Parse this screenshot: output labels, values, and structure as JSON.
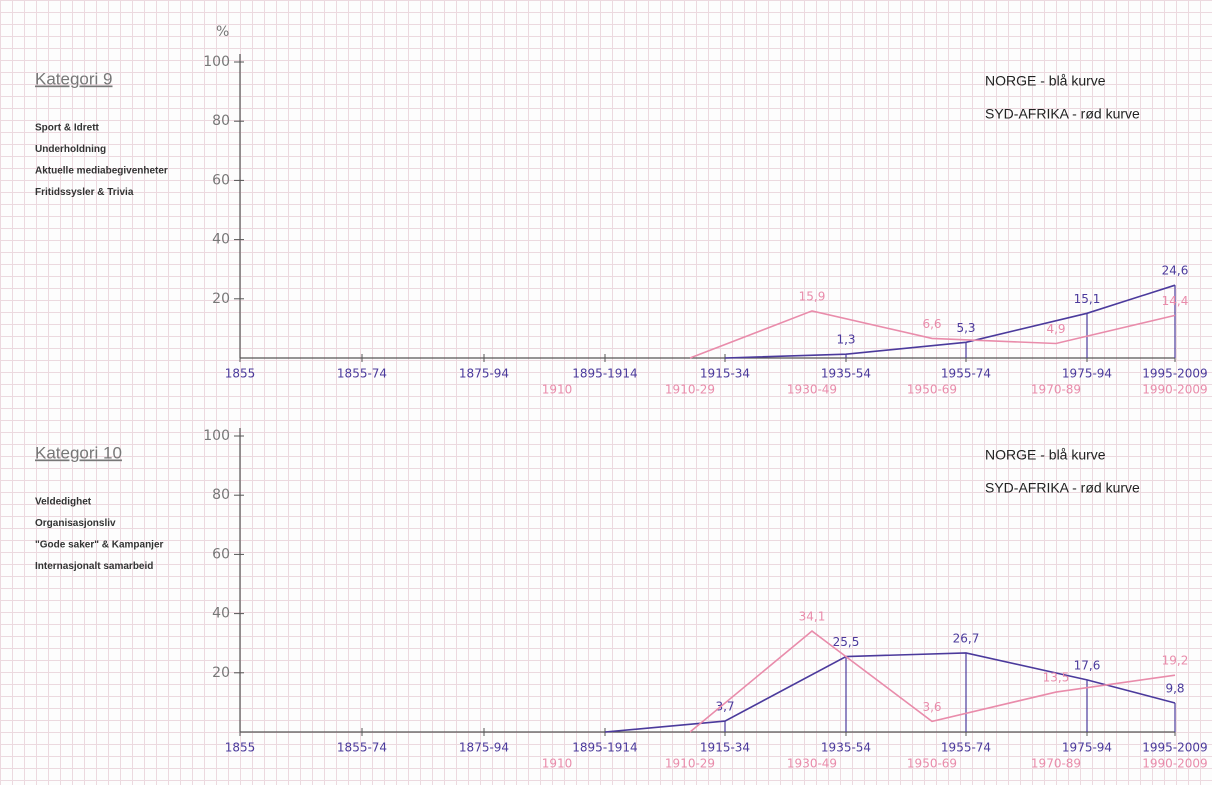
{
  "chart_data": [
    {
      "type": "line",
      "title": "Kategori 9",
      "topics": [
        "Sport & Idrett",
        "Underholdning",
        "Aktuelle mediabegivenheter",
        "Fritidssysler & Trivia"
      ],
      "y_label": "%",
      "ylim": [
        0,
        100
      ],
      "yticks": [
        20,
        40,
        60,
        80,
        100
      ],
      "series": [
        {
          "name": "NORGE - blå kurve",
          "color": "#4b3a9c",
          "categories": [
            "1855",
            "1855-74",
            "1875-94",
            "1895-1914",
            "1915-34",
            "1935-54",
            "1955-74",
            "1975-94",
            "1995-2009"
          ],
          "values": [
            null,
            null,
            null,
            null,
            0,
            1.3,
            5.3,
            15.1,
            24.6
          ],
          "value_labels": [
            null,
            null,
            null,
            null,
            null,
            "1,3",
            "5,3",
            "15,1",
            "24,6"
          ]
        },
        {
          "name": "SYD-AFRIKA - rød kurve",
          "color": "#e98cab",
          "categories": [
            "1910",
            "1910-29",
            "1930-49",
            "1950-69",
            "1970-89",
            "1990-2009"
          ],
          "values": [
            null,
            0,
            15.9,
            6.6,
            4.9,
            14.4
          ],
          "value_labels": [
            null,
            null,
            "15,9",
            "6,6",
            "4,9",
            "14,4"
          ]
        }
      ]
    },
    {
      "type": "line",
      "title": "Kategori 10",
      "topics": [
        "Veldedighet",
        "Organisasjonsliv",
        "\"Gode saker\" & Kampanjer",
        "Internasjonalt samarbeid"
      ],
      "ylim": [
        0,
        100
      ],
      "yticks": [
        20,
        40,
        60,
        80,
        100
      ],
      "series": [
        {
          "name": "NORGE - blå kurve",
          "color": "#4b3a9c",
          "categories": [
            "1855",
            "1855-74",
            "1875-94",
            "1895-1914",
            "1915-34",
            "1935-54",
            "1955-74",
            "1975-94",
            "1995-2009"
          ],
          "values": [
            null,
            null,
            null,
            0,
            3.7,
            25.5,
            26.7,
            17.6,
            9.8
          ],
          "value_labels": [
            null,
            null,
            null,
            null,
            "3,7",
            "25,5",
            "26,7",
            "17,6",
            "9,8"
          ]
        },
        {
          "name": "SYD-AFRIKA - rød kurve",
          "color": "#e98cab",
          "categories": [
            "1910",
            "1910-29",
            "1930-49",
            "1950-69",
            "1970-89",
            "1990-2009"
          ],
          "values": [
            null,
            0,
            34.1,
            3.6,
            13.5,
            19.2
          ],
          "value_labels": [
            null,
            null,
            "34,1",
            "3,6",
            "13,5",
            "19,2"
          ]
        }
      ]
    }
  ]
}
